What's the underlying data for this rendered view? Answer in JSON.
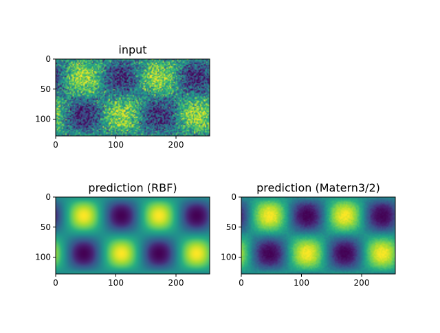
{
  "chart_data": [
    {
      "type": "heatmap",
      "title": "input",
      "colormap": "viridis",
      "image_size": [
        128,
        256
      ],
      "noise": "high",
      "xticks": [
        0,
        100,
        200
      ],
      "yticks": [
        0,
        50,
        100
      ],
      "xlim": [
        0,
        256
      ],
      "ylim": [
        128,
        0
      ],
      "blob_centers_x": [
        31,
        94,
        156,
        218
      ],
      "blob_centers_y": [
        32,
        95
      ],
      "pattern_top_row": [
        "high",
        "low",
        "high",
        "low"
      ],
      "pattern_bottom_row": [
        "low",
        "high",
        "low",
        "high"
      ]
    },
    {
      "type": "heatmap",
      "title": "prediction (RBF)",
      "colormap": "viridis",
      "image_size": [
        128,
        256
      ],
      "noise": "none",
      "xticks": [
        0,
        100,
        200
      ],
      "yticks": [
        0,
        50,
        100
      ],
      "xlim": [
        0,
        256
      ],
      "ylim": [
        128,
        0
      ],
      "blob_centers_x": [
        31,
        94,
        156,
        218
      ],
      "blob_centers_y": [
        32,
        95
      ],
      "pattern_top_row": [
        "high",
        "low",
        "high",
        "low"
      ],
      "pattern_bottom_row": [
        "low",
        "high",
        "low",
        "high"
      ]
    },
    {
      "type": "heatmap",
      "title": "prediction (Matern3/2)",
      "colormap": "viridis",
      "image_size": [
        128,
        256
      ],
      "noise": "low",
      "xticks": [
        0,
        100,
        200
      ],
      "yticks": [
        0,
        50,
        100
      ],
      "xlim": [
        0,
        256
      ],
      "ylim": [
        128,
        0
      ],
      "blob_centers_x": [
        31,
        94,
        156,
        218
      ],
      "blob_centers_y": [
        32,
        95
      ],
      "pattern_top_row": [
        "high",
        "low",
        "high",
        "low"
      ],
      "pattern_bottom_row": [
        "low",
        "high",
        "low",
        "high"
      ]
    }
  ]
}
